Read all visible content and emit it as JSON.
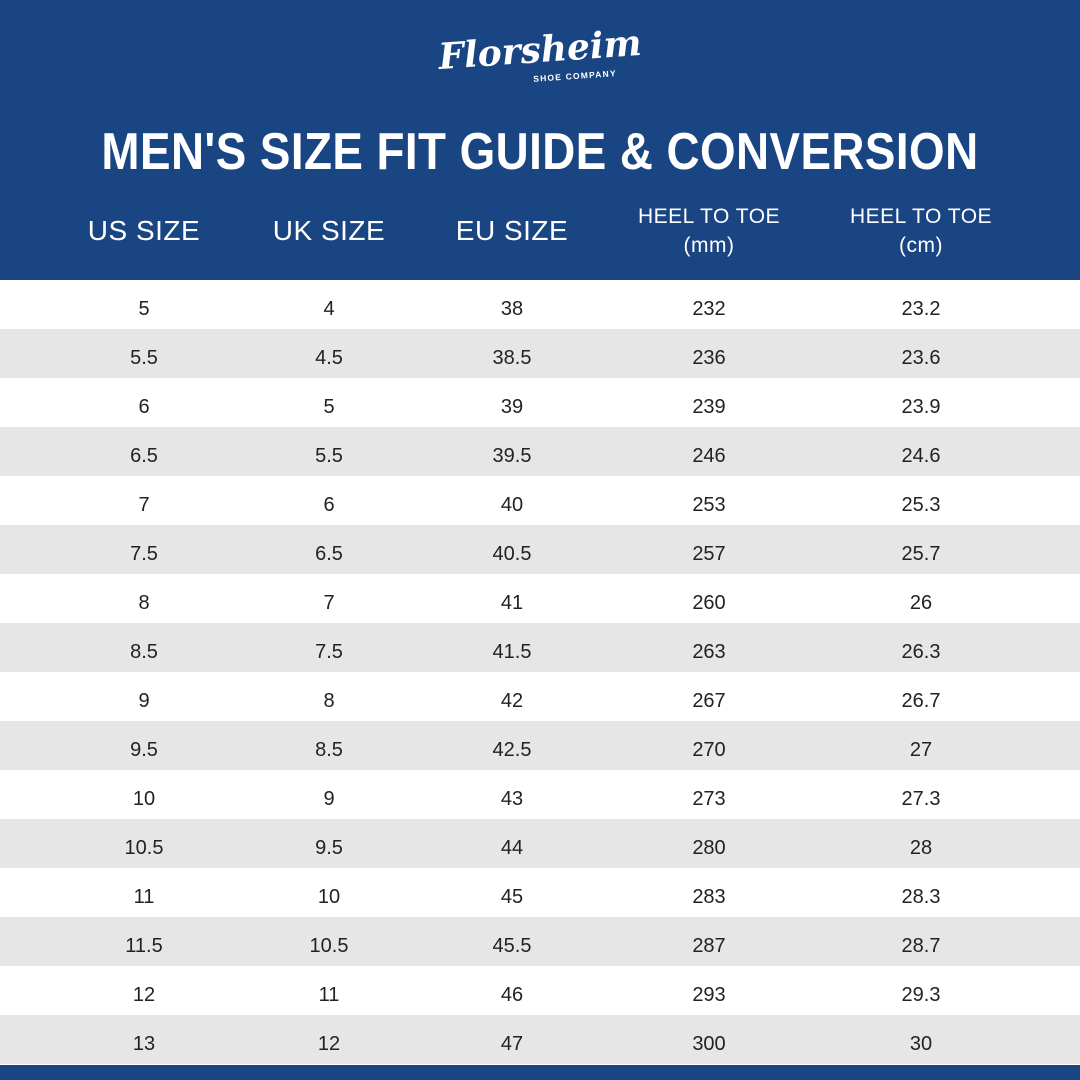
{
  "brand": {
    "name": "Florsheim",
    "tagline": "SHOE COMPANY"
  },
  "title": "MEN'S SIZE FIT GUIDE & CONVERSION",
  "columns": [
    {
      "line1": "US SIZE",
      "line2": ""
    },
    {
      "line1": "UK SIZE",
      "line2": ""
    },
    {
      "line1": "EU SIZE",
      "line2": ""
    },
    {
      "line1": "HEEL TO TOE",
      "line2": "(mm)"
    },
    {
      "line1": "HEEL TO TOE",
      "line2": "(cm)"
    }
  ],
  "rows": [
    [
      "5",
      "4",
      "38",
      "232",
      "23.2"
    ],
    [
      "5.5",
      "4.5",
      "38.5",
      "236",
      "23.6"
    ],
    [
      "6",
      "5",
      "39",
      "239",
      "23.9"
    ],
    [
      "6.5",
      "5.5",
      "39.5",
      "246",
      "24.6"
    ],
    [
      "7",
      "6",
      "40",
      "253",
      "25.3"
    ],
    [
      "7.5",
      "6.5",
      "40.5",
      "257",
      "25.7"
    ],
    [
      "8",
      "7",
      "41",
      "260",
      "26"
    ],
    [
      "8.5",
      "7.5",
      "41.5",
      "263",
      "26.3"
    ],
    [
      "9",
      "8",
      "42",
      "267",
      "26.7"
    ],
    [
      "9.5",
      "8.5",
      "42.5",
      "270",
      "27"
    ],
    [
      "10",
      "9",
      "43",
      "273",
      "27.3"
    ],
    [
      "10.5",
      "9.5",
      "44",
      "280",
      "28"
    ],
    [
      "11",
      "10",
      "45",
      "283",
      "28.3"
    ],
    [
      "11.5",
      "10.5",
      "45.5",
      "287",
      "28.7"
    ],
    [
      "12",
      "11",
      "46",
      "293",
      "29.3"
    ],
    [
      "13",
      "12",
      "47",
      "300",
      "30"
    ]
  ],
  "colors": {
    "brand_blue": "#1a4583",
    "stripe_gray": "#e6e6e6",
    "text_dark": "#222222"
  }
}
